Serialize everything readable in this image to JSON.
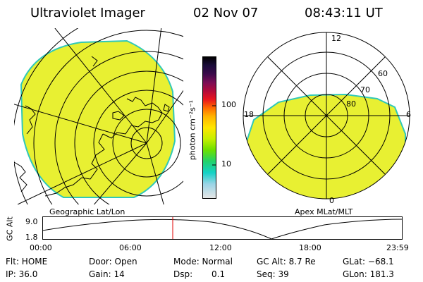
{
  "header": {
    "title": "Ultraviolet Imager",
    "date": "02 Nov 07",
    "time": "08:43:11 UT"
  },
  "left_panel": {
    "caption": "Geographic Lat/Lon"
  },
  "right_panel": {
    "caption": "Apex MLat/MLT",
    "mlt_labels": [
      "12",
      "18",
      "6",
      "0"
    ],
    "mlat_labels": [
      "60",
      "70",
      "80"
    ]
  },
  "colorbar": {
    "unit_label": "photon cm⁻²s⁻¹",
    "ticks": [
      "100",
      "10"
    ],
    "colors": [
      "#000000",
      "#1a0b3a",
      "#3b0a4a",
      "#7a0c55",
      "#b20a3a",
      "#e8141e",
      "#ff6a00",
      "#ffb300",
      "#ffe600",
      "#c6f000",
      "#6be000",
      "#21d26c",
      "#14d2c6",
      "#9ad4e6",
      "#e6e6e6"
    ]
  },
  "altitude_plot": {
    "ylabel": "GC Alt",
    "y_ticks": [
      "9.0",
      "1.8"
    ],
    "x_ticks": [
      "00:00",
      "06:00",
      "12:00",
      "18:00",
      "23:59"
    ],
    "marker_color": "#e00000"
  },
  "image_colors": {
    "aurora_fill": "#e8f032",
    "edge": "#30c8b8"
  },
  "info": {
    "flt": "Flt: HOME",
    "ip": "IP: 36.0",
    "door": "Door: Open",
    "gain": "Gain: 14",
    "mode": "Mode: Normal",
    "dsp_label": "Dsp:",
    "dsp_value": "0.1",
    "gc_alt": "GC Alt: 8.7 Re",
    "seq": "Seq: 39",
    "glat": "GLat: −68.1",
    "glon": "GLon: 181.3"
  }
}
